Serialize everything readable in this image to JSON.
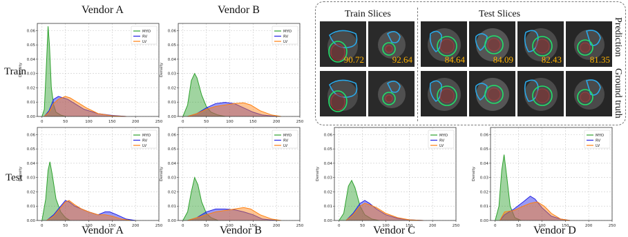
{
  "headers": {
    "vendor_a_top": "Vendor A",
    "vendor_b_top": "Vendor B"
  },
  "row_labels": {
    "train": "Train",
    "test": "Test"
  },
  "bottom_labels": {
    "a": "Vendor A",
    "b": "Vendor B",
    "c": "Vendor C",
    "d": "Vendor D"
  },
  "mri": {
    "train_header": "Train Slices",
    "test_header": "Test Slices",
    "row1_label": "Prediction",
    "row2_label": "Ground truth",
    "dice": [
      "90.72",
      "92.64",
      "84.64",
      "84.09",
      "82.43",
      "81.35"
    ]
  },
  "colors": {
    "MYO": "#2ca02c",
    "RV": "#1f1fe6",
    "LV": "#ff7f0e",
    "overlap": "#a0418f"
  },
  "chart_data": [
    {
      "id": "train_a",
      "type": "area",
      "title": "Vendor A",
      "xlabel": "",
      "ylabel": "Density",
      "xlim": [
        -10,
        250
      ],
      "ylim": [
        0,
        0.065
      ],
      "xticks": [
        0,
        50,
        100,
        150,
        200,
        250
      ],
      "yticks": [
        0,
        0.01,
        0.02,
        0.03,
        0.04,
        0.05,
        0.06
      ],
      "legend": "top-right",
      "grid": true,
      "series": [
        {
          "name": "MYO",
          "x": [
            0,
            5,
            10,
            13,
            16,
            20,
            25,
            30,
            40,
            50
          ],
          "y": [
            0,
            0.005,
            0.04,
            0.063,
            0.05,
            0.02,
            0.008,
            0.003,
            0.001,
            0
          ]
        },
        {
          "name": "RV",
          "x": [
            5,
            15,
            25,
            35,
            45,
            55,
            70,
            90,
            120,
            150,
            180
          ],
          "y": [
            0,
            0.004,
            0.012,
            0.014,
            0.013,
            0.012,
            0.009,
            0.005,
            0.002,
            0.0007,
            0
          ]
        },
        {
          "name": "LV",
          "x": [
            5,
            15,
            25,
            35,
            50,
            60,
            75,
            95,
            120,
            150,
            180
          ],
          "y": [
            0,
            0.003,
            0.009,
            0.012,
            0.014,
            0.013,
            0.01,
            0.006,
            0.002,
            0.0005,
            0
          ]
        }
      ]
    },
    {
      "id": "train_b",
      "type": "area",
      "title": "Vendor B",
      "xlabel": "",
      "ylabel": "Density",
      "xlim": [
        -10,
        250
      ],
      "ylim": [
        0,
        0.065
      ],
      "xticks": [
        0,
        50,
        100,
        150,
        200,
        250
      ],
      "yticks": [
        0,
        0.01,
        0.02,
        0.03,
        0.04,
        0.05,
        0.06
      ],
      "legend": "top-right",
      "grid": true,
      "series": [
        {
          "name": "MYO",
          "x": [
            0,
            10,
            18,
            25,
            30,
            40,
            50,
            60,
            75,
            90
          ],
          "y": [
            0,
            0.008,
            0.025,
            0.03,
            0.027,
            0.015,
            0.007,
            0.003,
            0.001,
            0
          ]
        },
        {
          "name": "RV",
          "x": [
            10,
            30,
            50,
            70,
            90,
            110,
            130,
            150,
            170,
            200
          ],
          "y": [
            0,
            0.002,
            0.006,
            0.009,
            0.0098,
            0.009,
            0.006,
            0.003,
            0.001,
            0
          ]
        },
        {
          "name": "LV",
          "x": [
            10,
            30,
            50,
            70,
            90,
            110,
            130,
            145,
            165,
            190,
            210
          ],
          "y": [
            0,
            0.002,
            0.005,
            0.007,
            0.008,
            0.009,
            0.0095,
            0.008,
            0.004,
            0.001,
            0
          ]
        }
      ]
    },
    {
      "id": "test_a",
      "type": "area",
      "title": "",
      "xlabel": "Vendor A",
      "ylabel": "Density",
      "xlim": [
        -10,
        250
      ],
      "ylim": [
        0,
        0.065
      ],
      "xticks": [
        0,
        50,
        100,
        150,
        200,
        250
      ],
      "yticks": [
        0,
        0.01,
        0.02,
        0.03,
        0.04,
        0.05,
        0.06
      ],
      "legend": "top-right",
      "grid": true,
      "series": [
        {
          "name": "MYO",
          "x": [
            0,
            8,
            13,
            17,
            22,
            30,
            40,
            50,
            60
          ],
          "y": [
            0,
            0.015,
            0.035,
            0.041,
            0.032,
            0.015,
            0.006,
            0.002,
            0
          ]
        },
        {
          "name": "RV",
          "x": [
            10,
            25,
            40,
            50,
            58,
            70,
            85,
            100,
            120,
            135,
            145,
            160,
            180,
            200
          ],
          "y": [
            0,
            0.004,
            0.01,
            0.014,
            0.013,
            0.01,
            0.008,
            0.006,
            0.004,
            0.006,
            0.006,
            0.004,
            0.001,
            0
          ]
        },
        {
          "name": "LV",
          "x": [
            10,
            25,
            40,
            50,
            58,
            70,
            85,
            100,
            120,
            135,
            150,
            170,
            190
          ],
          "y": [
            0,
            0.003,
            0.009,
            0.013,
            0.014,
            0.011,
            0.008,
            0.006,
            0.004,
            0.004,
            0.003,
            0.001,
            0
          ]
        }
      ]
    },
    {
      "id": "test_b",
      "type": "area",
      "title": "",
      "xlabel": "Vendor B",
      "ylabel": "Density",
      "xlim": [
        -10,
        250
      ],
      "ylim": [
        0,
        0.065
      ],
      "xticks": [
        0,
        50,
        100,
        150,
        200,
        250
      ],
      "yticks": [
        0,
        0.01,
        0.02,
        0.03,
        0.04,
        0.05,
        0.06
      ],
      "legend": "top-right",
      "grid": true,
      "series": [
        {
          "name": "MYO",
          "x": [
            0,
            10,
            18,
            25,
            32,
            40,
            50,
            60,
            75
          ],
          "y": [
            0,
            0.006,
            0.02,
            0.03,
            0.025,
            0.013,
            0.005,
            0.002,
            0
          ]
        },
        {
          "name": "RV",
          "x": [
            10,
            30,
            50,
            70,
            90,
            110,
            130,
            150,
            170,
            200
          ],
          "y": [
            0,
            0.002,
            0.006,
            0.008,
            0.008,
            0.0075,
            0.006,
            0.004,
            0.001,
            0
          ]
        },
        {
          "name": "LV",
          "x": [
            10,
            30,
            50,
            70,
            90,
            110,
            130,
            145,
            165,
            190,
            210
          ],
          "y": [
            0,
            0.002,
            0.004,
            0.006,
            0.007,
            0.008,
            0.009,
            0.008,
            0.004,
            0.001,
            0
          ]
        }
      ]
    },
    {
      "id": "test_c",
      "type": "area",
      "title": "",
      "xlabel": "Vendor C",
      "ylabel": "Density",
      "xlim": [
        -10,
        250
      ],
      "ylim": [
        0,
        0.065
      ],
      "xticks": [
        0,
        50,
        100,
        150,
        200,
        250
      ],
      "yticks": [
        0,
        0.01,
        0.02,
        0.03,
        0.04,
        0.05,
        0.06
      ],
      "legend": "top-right",
      "grid": true,
      "series": [
        {
          "name": "MYO",
          "x": [
            0,
            10,
            20,
            27,
            34,
            45,
            55,
            70,
            85
          ],
          "y": [
            0,
            0.005,
            0.024,
            0.028,
            0.023,
            0.01,
            0.004,
            0.001,
            0
          ]
        },
        {
          "name": "RV",
          "x": [
            15,
            30,
            45,
            55,
            65,
            80,
            100,
            125,
            150,
            180
          ],
          "y": [
            0,
            0.005,
            0.012,
            0.014,
            0.012,
            0.008,
            0.004,
            0.0015,
            0.0005,
            0
          ]
        },
        {
          "name": "LV",
          "x": [
            15,
            30,
            45,
            55,
            65,
            80,
            100,
            125,
            150,
            180
          ],
          "y": [
            0,
            0.004,
            0.01,
            0.012,
            0.011,
            0.009,
            0.005,
            0.002,
            0.0005,
            0
          ]
        }
      ]
    },
    {
      "id": "test_d",
      "type": "area",
      "title": "",
      "xlabel": "Vendor D",
      "ylabel": "Density",
      "xlim": [
        -10,
        250
      ],
      "ylim": [
        0,
        0.065
      ],
      "xticks": [
        0,
        50,
        100,
        150,
        200,
        250
      ],
      "yticks": [
        0,
        0.01,
        0.02,
        0.03,
        0.04,
        0.05,
        0.06
      ],
      "legend": "top-right",
      "grid": true,
      "series": [
        {
          "name": "MYO",
          "x": [
            0,
            8,
            14,
            19,
            25,
            32,
            42,
            55
          ],
          "y": [
            0,
            0.01,
            0.035,
            0.046,
            0.03,
            0.01,
            0.002,
            0
          ]
        },
        {
          "name": "RV",
          "x": [
            10,
            20,
            40,
            60,
            75,
            85,
            100,
            120,
            140,
            160
          ],
          "y": [
            0,
            0.004,
            0.008,
            0.013,
            0.017,
            0.015,
            0.009,
            0.003,
            0.001,
            0
          ]
        },
        {
          "name": "LV",
          "x": [
            10,
            20,
            40,
            60,
            75,
            90,
            105,
            120,
            140,
            160
          ],
          "y": [
            0,
            0.006,
            0.007,
            0.01,
            0.012,
            0.013,
            0.01,
            0.005,
            0.001,
            0
          ]
        }
      ]
    }
  ]
}
